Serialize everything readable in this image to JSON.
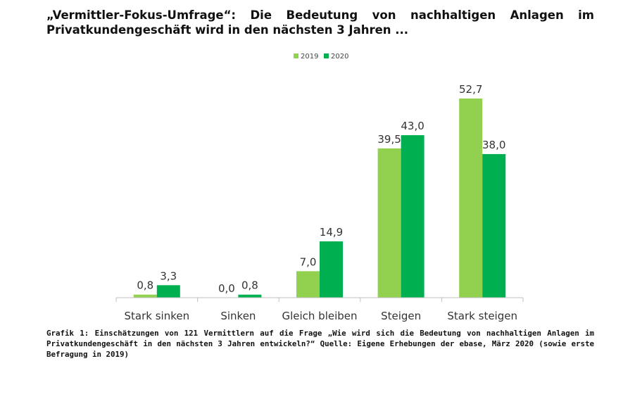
{
  "title": {
    "line1": "„Vermittler-Fokus-Umfrage“: Die Bedeutung von nachhaltigen Anlagen im",
    "line2": "Privatkundengeschäft wird in den nächsten 3 Jahren ..."
  },
  "caption": "Grafik 1: Einschätzungen von 121 Vermittlern auf die Frage „Wie wird sich die Bedeutung von nachhaltigen Anlagen im Privatkundengeschäft in den nächsten 3 Jahren entwickeln?“ Quelle: Eigene Erhebungen der ebase, März 2020 (sowie erste Befragung in 2019)",
  "chart_data": {
    "type": "bar",
    "categories": [
      "Stark sinken",
      "Sinken",
      "Gleich bleiben",
      "Steigen",
      "Stark steigen"
    ],
    "series": [
      {
        "name": "2019",
        "color": "#92d050",
        "values": [
          0.8,
          0.0,
          7.0,
          39.5,
          52.7
        ],
        "labels": [
          "0,8",
          "0,0",
          "7,0",
          "39,5",
          "52,7"
        ]
      },
      {
        "name": "2020",
        "color": "#00b050",
        "values": [
          3.3,
          0.8,
          14.9,
          43.0,
          38.0
        ],
        "labels": [
          "3,3",
          "0,8",
          "14,9",
          "43,0",
          "38,0"
        ]
      }
    ],
    "ylim": [
      0,
      56
    ],
    "legend_position": "top",
    "grid": false
  }
}
